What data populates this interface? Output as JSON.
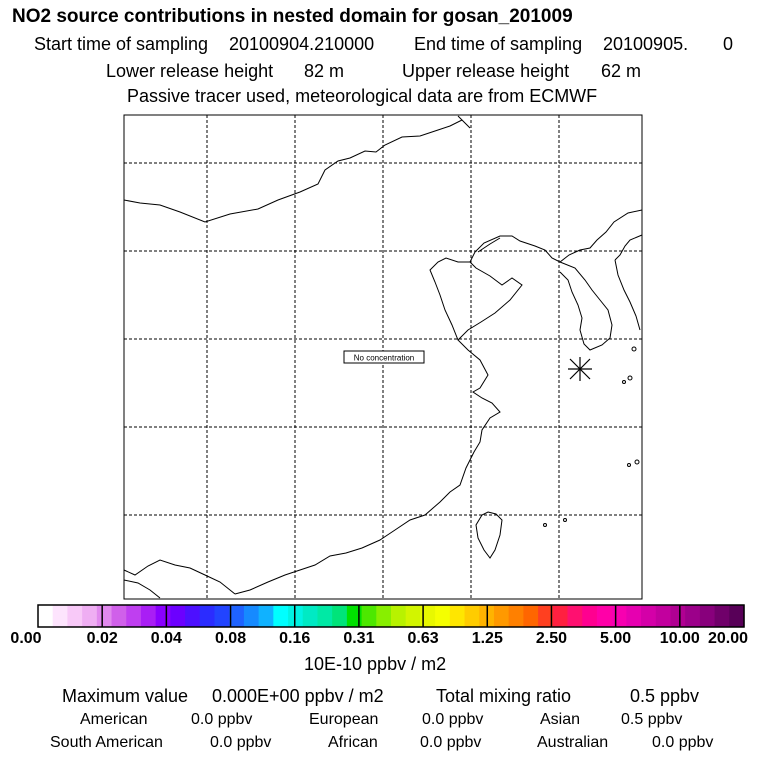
{
  "header": {
    "title": "NO2 source contributions in nested domain for gosan_201009",
    "start_label": "Start time of sampling",
    "start_value": "20100904.210000",
    "end_label": "End time of sampling",
    "end_value": "20100905.",
    "end_extra": "0",
    "lower_label": "Lower release height",
    "lower_value": "82 m",
    "upper_label": "Upper release height",
    "upper_value": "62 m",
    "tracer_note": "Passive tracer used, meteorological data are from ECMWF"
  },
  "map": {
    "annotation": "No concentration"
  },
  "colorbar": {
    "labels": [
      "0.00",
      "0.02",
      "0.04",
      "0.08",
      "0.16",
      "0.31",
      "0.63",
      "1.25",
      "2.50",
      "5.00",
      "10.00",
      "20.00"
    ],
    "colors": [
      "#ffffff",
      "#fde4fd",
      "#f8c9f8",
      "#efaef3",
      "#e189ee",
      "#d060ea",
      "#bf3ff0",
      "#a91ef5",
      "#8a00ff",
      "#6c00ff",
      "#4d10ff",
      "#2b2cff",
      "#2244ff",
      "#1f63ff",
      "#168aff",
      "#10b2ff",
      "#00ffff",
      "#00f3e3",
      "#00eac4",
      "#00e9a5",
      "#00e47a",
      "#00e100",
      "#4de800",
      "#88ef00",
      "#b8f200",
      "#d2f500",
      "#e8f800",
      "#f5ff00",
      "#ffe600",
      "#ffcc00",
      "#ffb300",
      "#ff9900",
      "#ff8000",
      "#ff6600",
      "#ff4020",
      "#ff2040",
      "#ff1070",
      "#ff0090",
      "#ff00a8",
      "#f700b0",
      "#e600b0",
      "#d400a8",
      "#c2009e",
      "#b00092",
      "#9c008a",
      "#88007c",
      "#70006a",
      "#580058"
    ],
    "unit": "10E-10 ppbv / m2"
  },
  "stats": {
    "max_label": "Maximum value",
    "max_value": "0.000E+00 ppbv / m2",
    "total_label": "Total mixing ratio",
    "total_value": "0.5 ppbv",
    "regions": [
      {
        "name": "American",
        "value": "0.0 ppbv"
      },
      {
        "name": "European",
        "value": "0.0 ppbv"
      },
      {
        "name": "Asian",
        "value": "0.5 ppbv"
      },
      {
        "name": "South American",
        "value": "0.0 ppbv"
      },
      {
        "name": "African",
        "value": "0.0 ppbv"
      },
      {
        "name": "Australian",
        "value": "0.0 ppbv"
      }
    ]
  }
}
